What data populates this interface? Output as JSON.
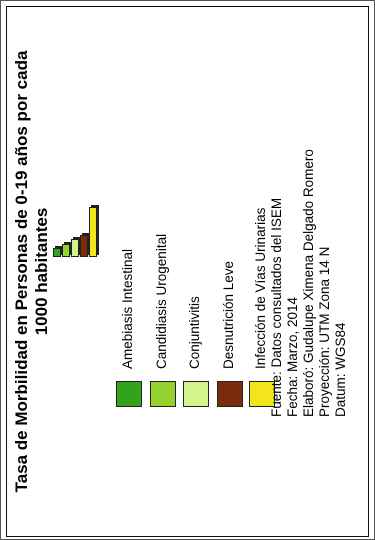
{
  "map_legend": {
    "title_line1": "Tasa de Morbilidad en Personas de 0-19 años por cada",
    "title_line2": "1000 habitantes",
    "categories": [
      {
        "label": "Amebiasis Intestinal",
        "color": "#33a31b",
        "bar_value": 1
      },
      {
        "label": "Candidiasis Urogenital",
        "color": "#93d22f",
        "bar_value": 2
      },
      {
        "label": "Conjuntivitis",
        "color": "#d3f48b",
        "bar_value": 3
      },
      {
        "label": "Desnutrición Leve",
        "color": "#7a2b0b",
        "bar_value": 4
      },
      {
        "label": "Infección de Vías Urinarias",
        "color": "#f2e51b",
        "bar_value": 10
      }
    ]
  },
  "credits": {
    "source": "Fuente: Datos consultados del ISEM",
    "date": "Fecha: Marzo, 2014",
    "author": "Elaboró: Gudalupe Ximena Delgado Romero",
    "projection": "Proyección: UTM Zona 14 N",
    "datum": "Datum: WGS84"
  }
}
